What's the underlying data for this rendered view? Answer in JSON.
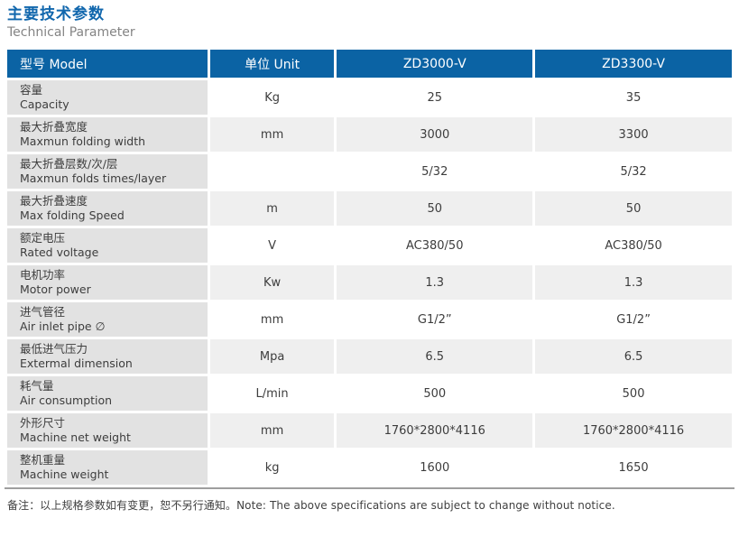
{
  "page": {
    "title_cn": "主要技术参数",
    "title_en": "Technical Parameter",
    "note": "备注：以上规格参数如有变更，恕不另行通知。Note: The above specifications are subject to change without notice."
  },
  "colors": {
    "header_blue": "#0b63a4",
    "title_blue": "#1167ad",
    "label_cell_gray": "#e2e2e2",
    "alt_row_gray": "#efefef",
    "bottom_line_gray": "#9e9e9e"
  },
  "table": {
    "headers": [
      "型号 Model",
      "单位 Unit",
      "ZD3000-V",
      "ZD3300-V"
    ],
    "rows": [
      {
        "cn": "容量",
        "en": "Capacity",
        "unit": "Kg",
        "v1": "25",
        "v2": "35"
      },
      {
        "cn": "最大折叠宽度",
        "en": "Maxmun folding width",
        "unit": "mm",
        "v1": "3000",
        "v2": "3300"
      },
      {
        "cn": "最大折叠层数/次/层",
        "en": "Maxmun folds times/layer",
        "unit": "",
        "v1": "5/32",
        "v2": "5/32"
      },
      {
        "cn": "最大折叠速度",
        "en": "Max folding Speed",
        "unit": "m",
        "v1": "50",
        "v2": "50"
      },
      {
        "cn": "额定电压",
        "en": "Rated voltage",
        "unit": "V",
        "v1": "AC380/50",
        "v2": "AC380/50"
      },
      {
        "cn": "电机功率",
        "en": "Motor power",
        "unit": "Kw",
        "v1": "1.3",
        "v2": "1.3"
      },
      {
        "cn": "进气管径",
        "en": "Air inlet pipe ∅",
        "unit": "mm",
        "v1": "G1/2”",
        "v2": "G1/2”"
      },
      {
        "cn": "最低进气压力",
        "en": "Extermal dimension",
        "unit": "Mpa",
        "v1": "6.5",
        "v2": "6.5"
      },
      {
        "cn": "耗气量",
        "en": "Air consumption",
        "unit": "L/min",
        "v1": "500",
        "v2": "500"
      },
      {
        "cn": "外形尺寸",
        "en": "Machine net weight",
        "unit": "mm",
        "v1": "1760*2800*4116",
        "v2": "1760*2800*4116"
      },
      {
        "cn": "整机重量",
        "en": "Machine weight",
        "unit": "kg",
        "v1": "1600",
        "v2": "1650"
      }
    ]
  }
}
